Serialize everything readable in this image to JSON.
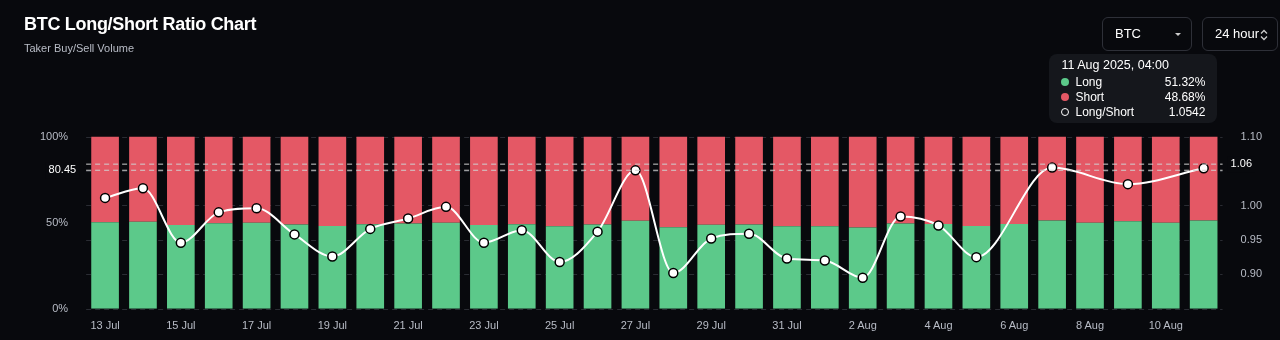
{
  "chart_data": {
    "type": "bar",
    "title": "BTC Long/Short Ratio Chart",
    "subtitle": "Taker Buy/Sell Volume",
    "categories": [
      "13 Jul",
      null,
      "15 Jul",
      null,
      "17 Jul",
      null,
      "19 Jul",
      null,
      "21 Jul",
      null,
      "23 Jul",
      null,
      "25 Jul",
      null,
      "27 Jul",
      null,
      "29 Jul",
      null,
      "31 Jul",
      null,
      "2 Aug",
      null,
      "4 Aug",
      null,
      "6 Aug",
      null,
      "8 Aug",
      null,
      "10 Aug",
      null
    ],
    "stacked": true,
    "series": [
      {
        "name": "Long",
        "color": "#5cc98a",
        "values": [
          50.3,
          50.6,
          48.6,
          49.7,
          49.9,
          48.9,
          48.1,
          49.1,
          49.5,
          49.9,
          48.6,
          49.1,
          47.9,
          49.0,
          51.2,
          47.4,
          48.8,
          49.0,
          48.0,
          47.9,
          47.2,
          49.6,
          49.3,
          48.1,
          49.2,
          51.3,
          50.0,
          50.8,
          50.0,
          51.3
        ]
      },
      {
        "name": "Short",
        "color": "#e45865",
        "values": [
          49.7,
          49.4,
          51.4,
          50.3,
          50.1,
          51.1,
          51.9,
          50.9,
          50.5,
          50.1,
          51.4,
          50.9,
          52.1,
          51.0,
          48.8,
          52.6,
          51.2,
          51.0,
          52.0,
          52.1,
          52.8,
          50.4,
          50.7,
          51.9,
          50.8,
          48.7,
          50.0,
          49.2,
          50.0,
          48.7
        ]
      },
      {
        "name": "Long/Short",
        "type": "line",
        "axis": "y2",
        "color": "#ffffff",
        "values": [
          1.011,
          1.025,
          0.946,
          0.99,
          0.996,
          0.958,
          0.926,
          0.966,
          0.981,
          0.998,
          0.946,
          0.964,
          0.918,
          0.962,
          1.051,
          0.902,
          0.952,
          0.959,
          0.923,
          0.92,
          0.895,
          0.984,
          0.971,
          0.925,
          null,
          1.055,
          null,
          1.031,
          null,
          1.054
        ]
      }
    ],
    "ylim": [
      0,
      100
    ],
    "yticks": [
      {
        "value": 0,
        "label": "0%"
      },
      {
        "value": 50,
        "label": "50%"
      },
      {
        "value": 100,
        "label": "100%"
      }
    ],
    "y2lim": [
      0.85,
      1.1
    ],
    "y2ticks": [
      {
        "value": 0.85,
        "label": null
      },
      {
        "value": 0.9,
        "label": "0.90"
      },
      {
        "value": 0.95,
        "label": "0.95"
      },
      {
        "value": 1.0,
        "label": "1.00"
      },
      {
        "value": 1.05,
        "label": null
      },
      {
        "value": 1.1,
        "label": "1.10"
      }
    ],
    "ref_lines": [
      {
        "axis": "y",
        "value": 80.45,
        "label": "80.45",
        "line_style": "dashed"
      },
      {
        "axis": "y2",
        "value": 1.06,
        "label": "1.06",
        "line_style": "dashed"
      }
    ],
    "grid": "y",
    "legend": "top right",
    "marker": "circle",
    "annotations": [
      "11 Aug 2025, 04:00",
      "51.32%",
      "48.68%",
      "1.0542",
      "BTC",
      "24 hour"
    ]
  }
}
